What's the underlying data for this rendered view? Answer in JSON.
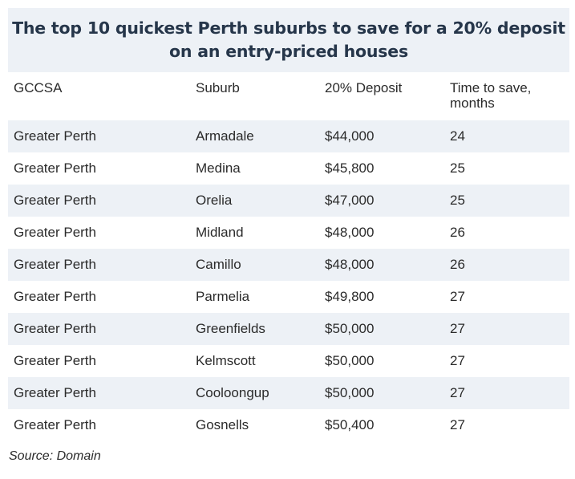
{
  "title": "The top 10 quickest Perth suburbs to save for a 20% deposit on an entry-priced houses",
  "table": {
    "headers": [
      "GCCSA",
      "Suburb",
      "20% Deposit",
      "Time to save, months"
    ],
    "rows": [
      [
        "Greater Perth",
        "Armadale",
        "$44,000",
        "24"
      ],
      [
        "Greater Perth",
        "Medina",
        "$45,800",
        "25"
      ],
      [
        "Greater Perth",
        "Orelia",
        "$47,000",
        "25"
      ],
      [
        "Greater Perth",
        "Midland",
        "$48,000",
        "26"
      ],
      [
        "Greater Perth",
        "Camillo",
        "$48,000",
        "26"
      ],
      [
        "Greater Perth",
        "Parmelia",
        "$49,800",
        "27"
      ],
      [
        "Greater Perth",
        "Greenfields",
        "$50,000",
        "27"
      ],
      [
        "Greater Perth",
        "Kelmscott",
        "$50,000",
        "27"
      ],
      [
        "Greater Perth",
        "Cooloongup",
        "$50,000",
        "27"
      ],
      [
        "Greater Perth",
        "Gosnells",
        "$50,400",
        "27"
      ]
    ]
  },
  "source": "Source: Domain",
  "colors": {
    "title_background": "#edf1f6",
    "title_text": "#26364a",
    "stripe": "#edf1f6",
    "text": "#2b2b2b"
  }
}
